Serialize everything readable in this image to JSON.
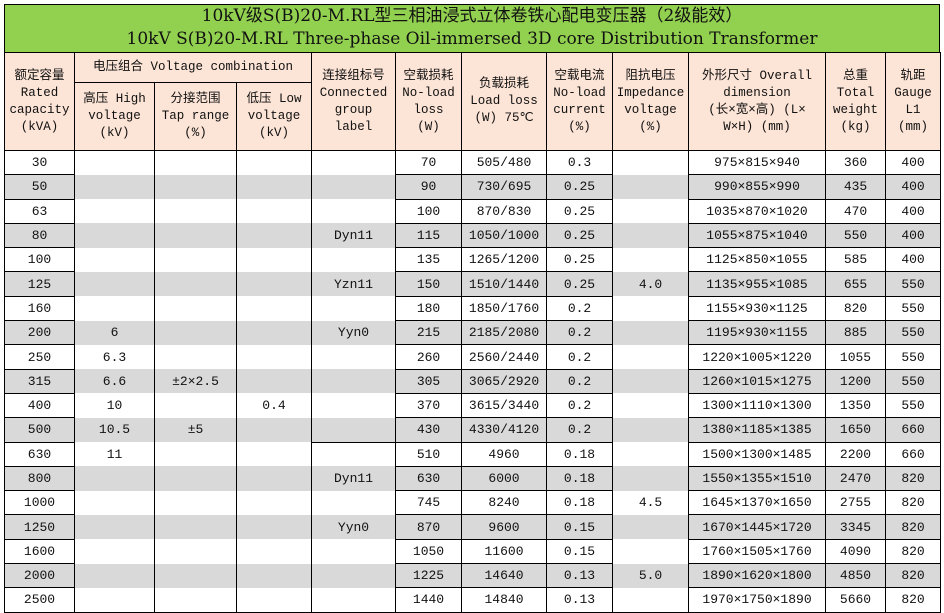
{
  "title": {
    "zh": "10kV级S(B)20-M.RL型三相油浸式立体卷铁心配电变压器（2级能效）",
    "en": "10kV S(B)20-M.RL Three-phase Oil-immersed 3D core Distribution Transformer"
  },
  "colors": {
    "title_bg": "#92d050",
    "header_bg": "#fce4d6",
    "stripe": "#d9d9d9"
  },
  "headers": {
    "rated_capacity": [
      "额定容量",
      "Rated",
      "capacity",
      "(kVA)"
    ],
    "voltage_combination": "电压组合 Voltage combination",
    "high_voltage": [
      "高压 High",
      "voltage",
      "(kV)"
    ],
    "tap_range": [
      "分接范围",
      "Tap range",
      "(%)"
    ],
    "low_voltage": [
      "低压 Low",
      "voltage",
      "(kV)"
    ],
    "connection_group": [
      "连接组标号",
      "Connected",
      "group",
      "label"
    ],
    "no_load_loss": [
      "空载损耗",
      "No-load",
      "loss",
      "(W)"
    ],
    "load_loss": [
      "负载损耗",
      "Load loss",
      "(W) 75℃"
    ],
    "no_load_current": [
      "空载电流",
      "No-load",
      "current",
      "(%)"
    ],
    "impedance_voltage": [
      "阻抗电压",
      "Impedance",
      "voltage",
      "(%)"
    ],
    "dimension": [
      "外形尺寸 Overall",
      "dimension",
      "(长×宽×高) (L×",
      "W×H) (mm)"
    ],
    "total_weight": [
      "总重",
      "Total",
      "weight",
      "(kg)"
    ],
    "gauge": [
      "轨距",
      "Gauge",
      "L1",
      "(mm)"
    ]
  },
  "rows": [
    [
      "30",
      "",
      "",
      "",
      "",
      "70",
      "505/480",
      "0.3",
      "",
      "975×815×940",
      "360",
      "400"
    ],
    [
      "50",
      "",
      "",
      "",
      "",
      "90",
      "730/695",
      "0.25",
      "",
      "990×855×990",
      "435",
      "400"
    ],
    [
      "63",
      "",
      "",
      "",
      "",
      "100",
      "870/830",
      "0.25",
      "",
      "1035×870×1020",
      "470",
      "400"
    ],
    [
      "80",
      "",
      "",
      "",
      "Dyn11",
      "115",
      "1050/1000",
      "0.25",
      "",
      "1055×875×1040",
      "550",
      "400"
    ],
    [
      "100",
      "",
      "",
      "",
      "",
      "135",
      "1265/1200",
      "0.25",
      "",
      "1125×850×1055",
      "585",
      "400"
    ],
    [
      "125",
      "",
      "",
      "",
      "Yzn11",
      "150",
      "1510/1440",
      "0.25",
      "4.0",
      "1135×955×1085",
      "655",
      "550"
    ],
    [
      "160",
      "",
      "",
      "",
      "",
      "180",
      "1850/1760",
      "0.2",
      "",
      "1155×930×1125",
      "820",
      "550"
    ],
    [
      "200",
      "6",
      "",
      "",
      "Yyn0",
      "215",
      "2185/2080",
      "0.2",
      "",
      "1195×930×1155",
      "885",
      "550"
    ],
    [
      "250",
      "6.3",
      "",
      "",
      "",
      "260",
      "2560/2440",
      "0.2",
      "",
      "1220×1005×1220",
      "1055",
      "550"
    ],
    [
      "315",
      "6.6",
      "±2×2.5",
      "",
      "",
      "305",
      "3065/2920",
      "0.2",
      "",
      "1260×1015×1275",
      "1200",
      "550"
    ],
    [
      "400",
      "10",
      "",
      "0.4",
      "",
      "370",
      "3615/3440",
      "0.2",
      "",
      "1300×1110×1300",
      "1350",
      "550"
    ],
    [
      "500",
      "10.5",
      "±5",
      "",
      "",
      "430",
      "4330/4120",
      "0.2",
      "",
      "1380×1185×1385",
      "1650",
      "660"
    ],
    [
      "630",
      "11",
      "",
      "",
      "",
      "510",
      "4960",
      "0.18",
      "",
      "1500×1300×1485",
      "2200",
      "660"
    ],
    [
      "800",
      "",
      "",
      "",
      "Dyn11",
      "630",
      "6000",
      "0.18",
      "",
      "1550×1355×1510",
      "2470",
      "820"
    ],
    [
      "1000",
      "",
      "",
      "",
      "",
      "745",
      "8240",
      "0.18",
      "4.5",
      "1645×1370×1650",
      "2755",
      "820"
    ],
    [
      "1250",
      "",
      "",
      "",
      "Yyn0",
      "870",
      "9600",
      "0.15",
      "",
      "1670×1445×1720",
      "3345",
      "820"
    ],
    [
      "1600",
      "",
      "",
      "",
      "",
      "1050",
      "11600",
      "0.15",
      "",
      "1760×1505×1760",
      "4090",
      "820"
    ],
    [
      "2000",
      "",
      "",
      "",
      "",
      "1225",
      "14640",
      "0.13",
      "5.0",
      "1890×1620×1800",
      "4850",
      "820"
    ],
    [
      "2500",
      "",
      "",
      "",
      "",
      "1440",
      "14840",
      "0.13",
      "",
      "1970×1750×1890",
      "5660",
      "820"
    ]
  ]
}
